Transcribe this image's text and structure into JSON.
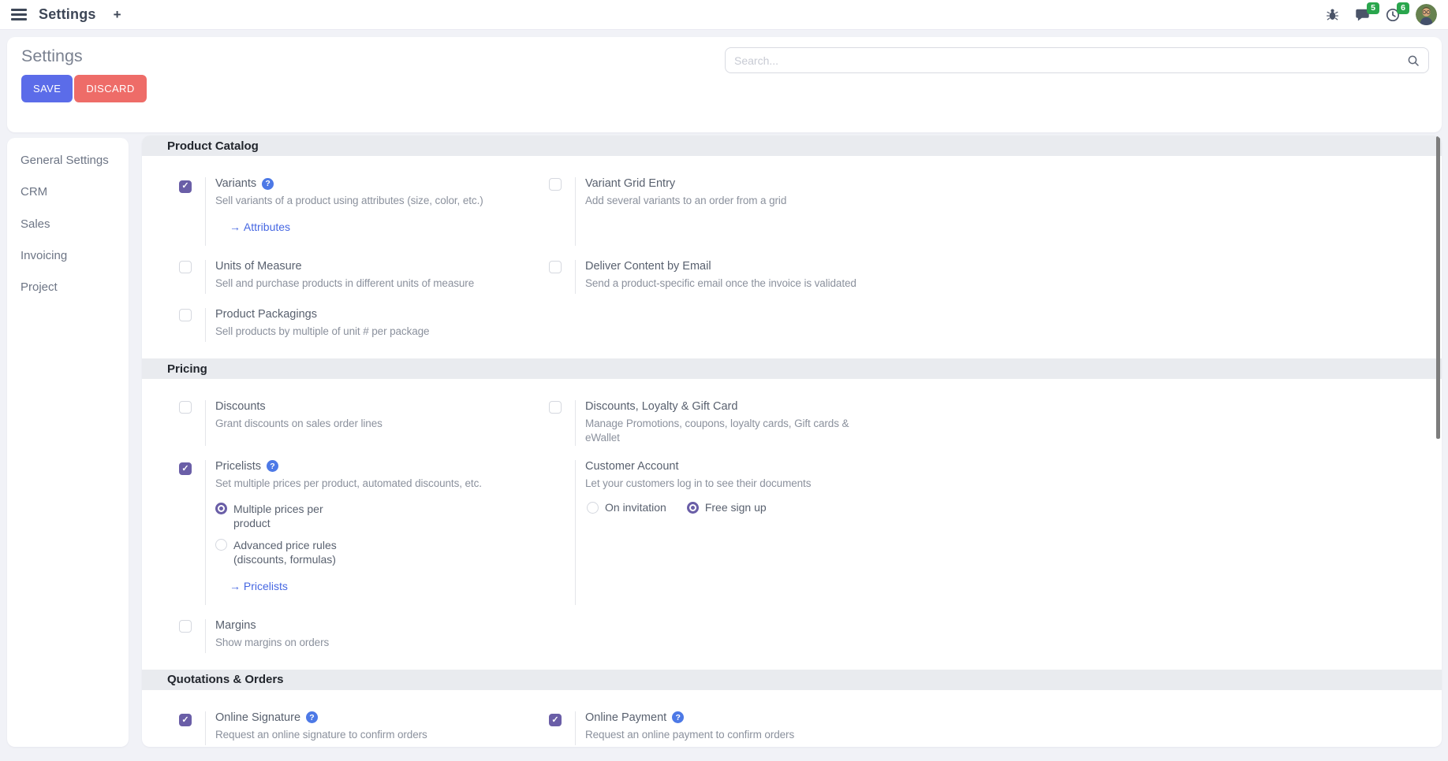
{
  "navbar": {
    "app_title": "Settings",
    "plus_label": "+",
    "systray": {
      "chat_badge": "5",
      "activity_badge": "6"
    }
  },
  "header": {
    "title": "Settings",
    "save_label": "SAVE",
    "discard_label": "DISCARD",
    "search_placeholder": "Search..."
  },
  "sidebar": {
    "items": [
      {
        "label": "General Settings"
      },
      {
        "label": "CRM"
      },
      {
        "label": "Sales"
      },
      {
        "label": "Invoicing"
      },
      {
        "label": "Project"
      }
    ]
  },
  "sections": [
    {
      "title": "Product Catalog",
      "items": [
        {
          "label": "Variants",
          "help": true,
          "checked": true,
          "desc": "Sell variants of a product using attributes (size, color, etc.)",
          "link": "Attributes"
        },
        {
          "label": "Variant Grid Entry",
          "checked": false,
          "desc": "Add several variants to an order from a grid"
        },
        {
          "label": "Units of Measure",
          "checked": false,
          "desc": "Sell and purchase products in different units of measure"
        },
        {
          "label": "Deliver Content by Email",
          "checked": false,
          "desc": "Send a product-specific email once the invoice is validated"
        },
        {
          "label": "Product Packagings",
          "checked": false,
          "desc": "Sell products by multiple of unit # per package"
        }
      ]
    },
    {
      "title": "Pricing",
      "items": [
        {
          "label": "Discounts",
          "checked": false,
          "desc": "Grant discounts on sales order lines"
        },
        {
          "label": "Discounts, Loyalty & Gift Card",
          "checked": false,
          "desc": "Manage Promotions, coupons, loyalty cards, Gift cards &\neWallet"
        },
        {
          "label": "Pricelists",
          "help": true,
          "checked": true,
          "desc": "Set multiple prices per product, automated discounts, etc.",
          "radios": [
            {
              "label": "Multiple prices per\nproduct",
              "selected": true
            },
            {
              "label": "Advanced price rules\n(discounts, formulas)",
              "selected": false
            }
          ],
          "link": "Pricelists"
        },
        {
          "label": "Customer Account",
          "checkbox": false,
          "desc": "Let your customers log in to see their documents",
          "radios_inline": true,
          "radios": [
            {
              "label": "On invitation",
              "selected": false
            },
            {
              "label": "Free sign up",
              "selected": true
            }
          ]
        },
        {
          "label": "Margins",
          "checked": false,
          "desc": "Show margins on orders"
        }
      ]
    },
    {
      "title": "Quotations & Orders",
      "items": [
        {
          "label": "Online Signature",
          "help": true,
          "checked": true,
          "desc": "Request an online signature to confirm orders"
        },
        {
          "label": "Online Payment",
          "help": true,
          "checked": true,
          "desc": "Request an online payment to confirm orders"
        }
      ]
    }
  ],
  "colors": {
    "accent_purple": "#6a5ea7",
    "link_blue": "#4667e2",
    "help_blue": "#4d79e6",
    "save_button": "#5b6ce9",
    "discard_button": "#ee6c68",
    "badge_green": "#2aa64d",
    "section_band_bg": "#e9ebef",
    "page_bg": "#f1f2f7"
  }
}
